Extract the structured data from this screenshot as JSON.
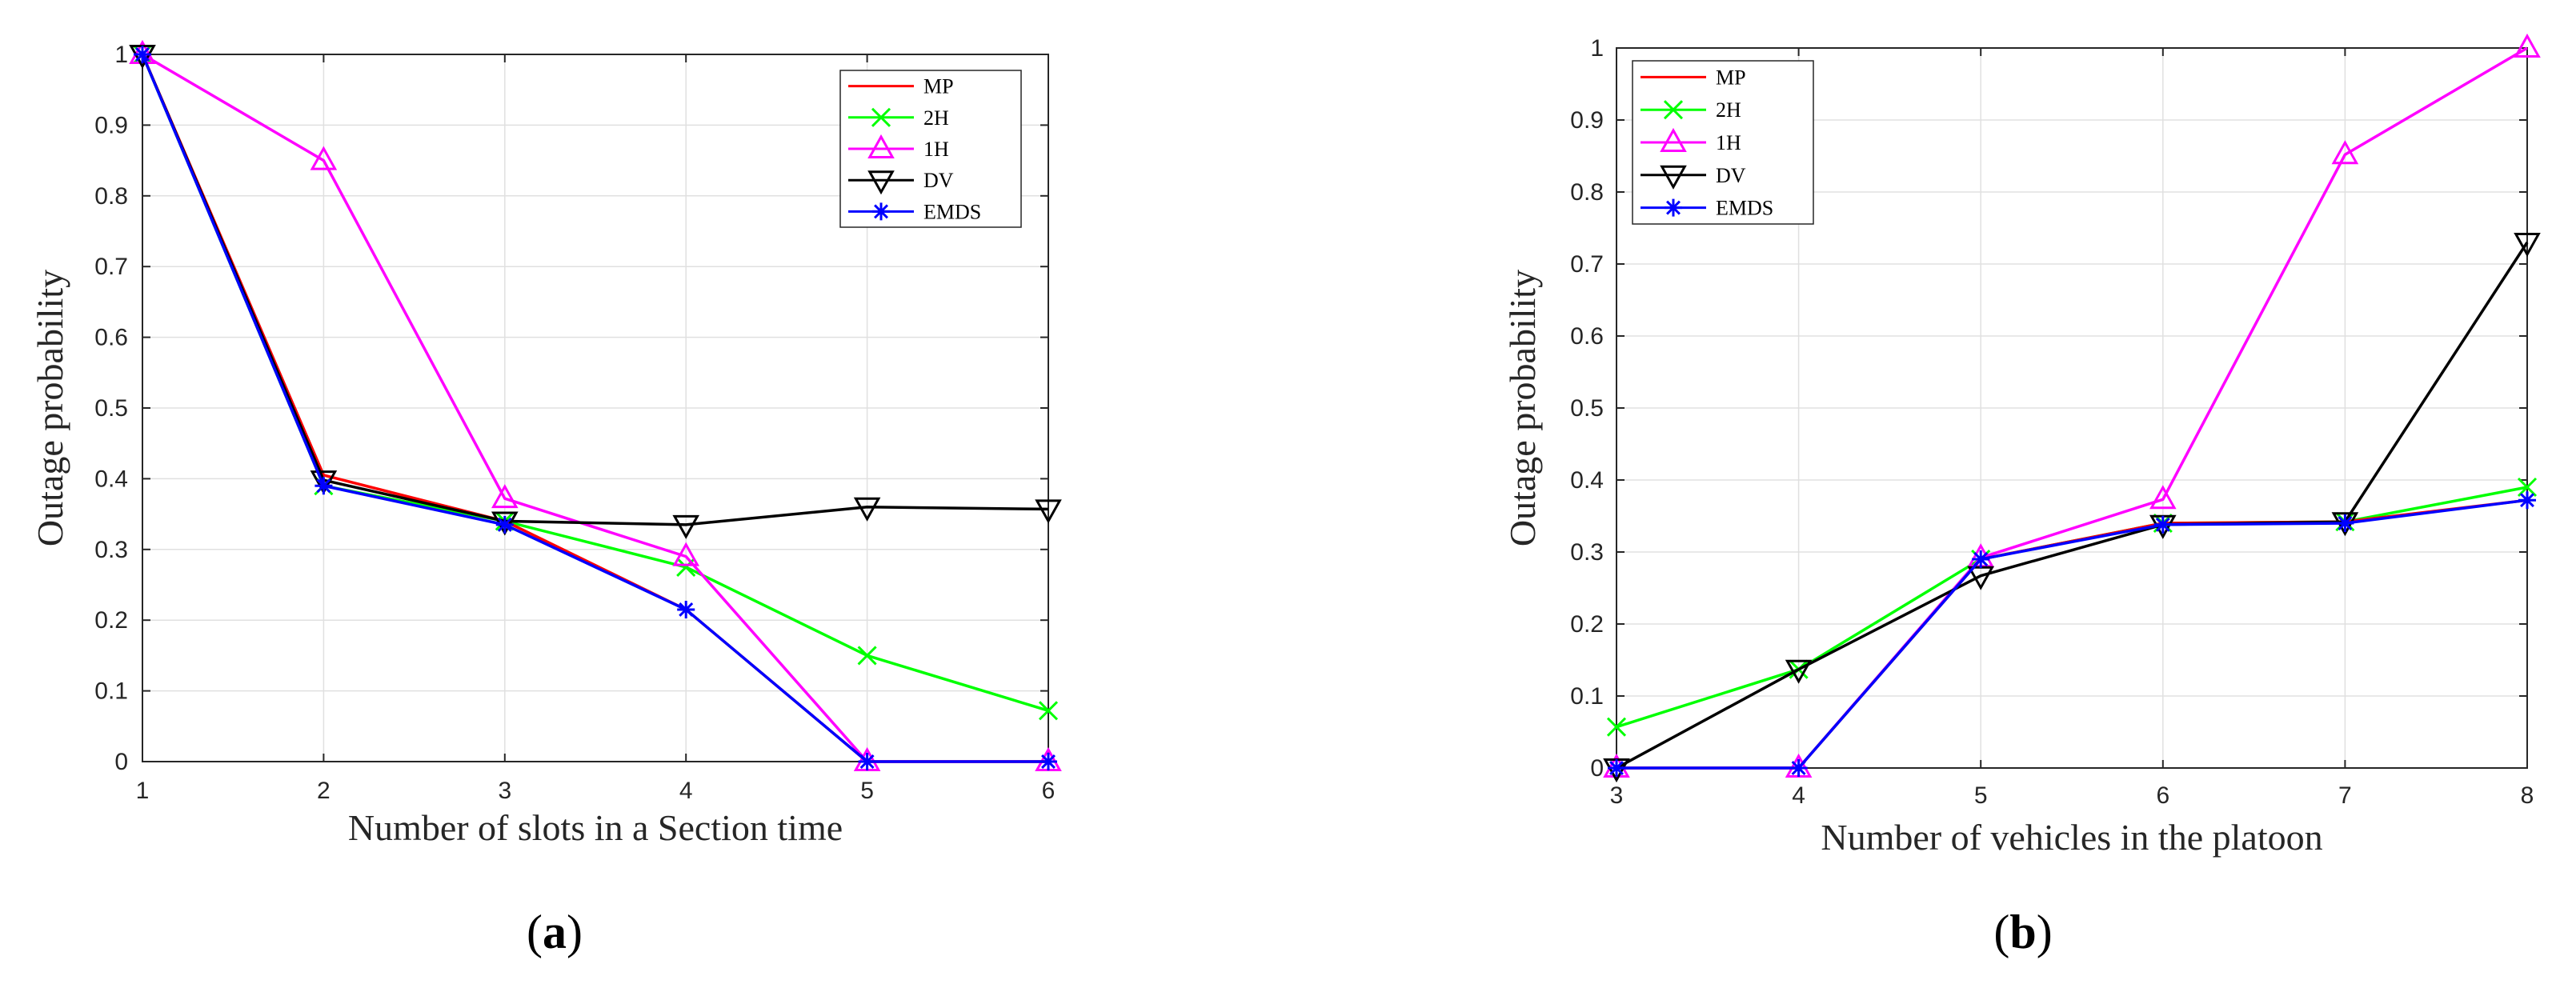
{
  "chart_data": [
    {
      "type": "line",
      "caption_letter": "a",
      "xlabel": "Number of slots in a Section time",
      "ylabel": "Outage probability",
      "xlim": [
        1,
        6
      ],
      "ylim": [
        0,
        1
      ],
      "x_ticks": [
        "1",
        "2",
        "3",
        "4",
        "5",
        "6"
      ],
      "y_ticks": [
        "0",
        "0.1",
        "0.2",
        "0.3",
        "0.4",
        "0.5",
        "0.6",
        "0.7",
        "0.8",
        "0.9",
        "1"
      ],
      "grid": true,
      "legend_position": "top-right",
      "x": [
        1,
        2,
        3,
        4,
        5,
        6
      ],
      "series": [
        {
          "name": "MP",
          "color": "#ff0000",
          "marker": "none",
          "values": [
            1.0,
            0.405,
            0.34,
            0.215,
            0.0,
            0.0
          ]
        },
        {
          "name": "2H",
          "color": "#00ff00",
          "marker": "x",
          "values": [
            1.0,
            0.39,
            0.34,
            0.275,
            0.15,
            0.072
          ]
        },
        {
          "name": "1H",
          "color": "#ff00ff",
          "marker": "triangle-up",
          "values": [
            1.0,
            0.85,
            0.372,
            0.29,
            0.0,
            0.0
          ]
        },
        {
          "name": "DV",
          "color": "#000000",
          "marker": "triangle-down",
          "values": [
            1.0,
            0.398,
            0.34,
            0.335,
            0.36,
            0.357
          ]
        },
        {
          "name": "EMDS",
          "color": "#0000ff",
          "marker": "asterisk",
          "values": [
            1.0,
            0.39,
            0.335,
            0.215,
            0.0,
            0.0
          ]
        }
      ]
    },
    {
      "type": "line",
      "caption_letter": "b",
      "xlabel": "Number of vehicles in the platoon",
      "ylabel": "Outage probability",
      "xlim": [
        3,
        8
      ],
      "ylim": [
        0,
        1
      ],
      "x_ticks": [
        "3",
        "4",
        "5",
        "6",
        "7",
        "8"
      ],
      "y_ticks": [
        "0",
        "0.1",
        "0.2",
        "0.3",
        "0.4",
        "0.5",
        "0.6",
        "0.7",
        "0.8",
        "0.9",
        "1"
      ],
      "grid": true,
      "legend_position": "top-left",
      "x": [
        3,
        4,
        5,
        6,
        7,
        8
      ],
      "series": [
        {
          "name": "MP",
          "color": "#ff0000",
          "marker": "none",
          "values": [
            0.0,
            0.0,
            0.29,
            0.34,
            0.342,
            0.372
          ]
        },
        {
          "name": "2H",
          "color": "#00ff00",
          "marker": "x",
          "values": [
            0.057,
            0.137,
            0.29,
            0.34,
            0.342,
            0.39
          ]
        },
        {
          "name": "1H",
          "color": "#ff00ff",
          "marker": "triangle-up",
          "values": [
            0.0,
            0.0,
            0.292,
            0.373,
            0.852,
            1.0
          ]
        },
        {
          "name": "DV",
          "color": "#000000",
          "marker": "triangle-down",
          "values": [
            0.0,
            0.137,
            0.267,
            0.338,
            0.342,
            0.73
          ]
        },
        {
          "name": "EMDS",
          "color": "#0000ff",
          "marker": "asterisk",
          "values": [
            0.0,
            0.0,
            0.29,
            0.338,
            0.34,
            0.372
          ]
        }
      ]
    }
  ]
}
